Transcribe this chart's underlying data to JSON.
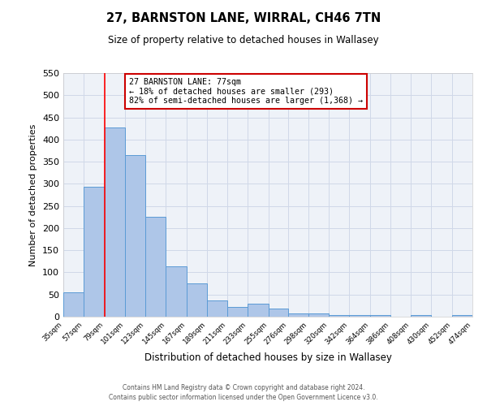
{
  "title": "27, BARNSTON LANE, WIRRAL, CH46 7TN",
  "subtitle": "Size of property relative to detached houses in Wallasey",
  "xlabel": "Distribution of detached houses by size in Wallasey",
  "ylabel": "Number of detached properties",
  "bin_edges": [
    35,
    57,
    79,
    101,
    123,
    145,
    167,
    189,
    211,
    233,
    255,
    276,
    298,
    320,
    342,
    364,
    386,
    408,
    430,
    452,
    474
  ],
  "bin_counts": [
    55,
    293,
    428,
    365,
    225,
    113,
    76,
    37,
    22,
    30,
    18,
    8,
    8,
    3,
    3,
    3,
    0,
    3,
    0,
    3
  ],
  "bar_color": "#aec6e8",
  "bar_edge_color": "#5b9bd5",
  "bar_edge_width": 0.7,
  "grid_color": "#d0d8e8",
  "bg_color": "#eef2f8",
  "red_line_x": 79,
  "ylim": [
    0,
    550
  ],
  "yticks": [
    0,
    50,
    100,
    150,
    200,
    250,
    300,
    350,
    400,
    450,
    500,
    550
  ],
  "annotation_text": "27 BARNSTON LANE: 77sqm\n← 18% of detached houses are smaller (293)\n82% of semi-detached houses are larger (1,368) →",
  "annotation_box_color": "#ffffff",
  "annotation_box_edge": "#cc0000",
  "footer_line1": "Contains HM Land Registry data © Crown copyright and database right 2024.",
  "footer_line2": "Contains public sector information licensed under the Open Government Licence v3.0."
}
